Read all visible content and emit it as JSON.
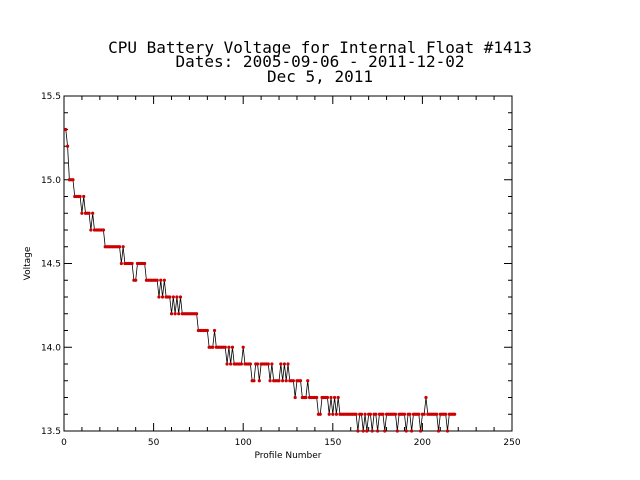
{
  "chart_data": {
    "type": "line",
    "title": "CPU Battery Voltage for Internal Float #1413",
    "subtitle": "Dates:  2005-09-06 -  2011-12-02",
    "date_line": "Dec  5, 2011",
    "xlabel": "Profile Number",
    "ylabel": "Voltage",
    "xlim": [
      0,
      250
    ],
    "ylim": [
      13.5,
      15.5
    ],
    "x_ticks": [
      0,
      50,
      100,
      150,
      200,
      250
    ],
    "x_tick_labels": [
      "0",
      "50",
      "100",
      "150",
      "200",
      "250"
    ],
    "y_ticks": [
      13.5,
      14.0,
      14.5,
      15.0,
      15.5
    ],
    "y_tick_labels": [
      "13.5",
      "14.0",
      "14.5",
      "15.0",
      "15.5"
    ],
    "grid": false,
    "line_color": "#000000",
    "marker_color": "#cc0000",
    "series": [
      {
        "values": [
          15.3,
          15.2,
          15.0,
          15.0,
          15.0,
          14.9,
          14.9,
          14.9,
          14.9,
          14.8,
          14.9,
          14.8,
          14.8,
          14.8,
          14.7,
          14.8,
          14.7,
          14.7,
          14.7,
          14.7,
          14.7,
          14.7,
          14.6,
          14.6,
          14.6,
          14.6,
          14.6,
          14.6,
          14.6,
          14.6,
          14.6,
          14.5,
          14.6,
          14.5,
          14.5,
          14.5,
          14.5,
          14.5,
          14.4,
          14.4,
          14.5,
          14.5,
          14.5,
          14.5,
          14.5,
          14.4,
          14.4,
          14.4,
          14.4,
          14.4,
          14.4,
          14.4,
          14.3,
          14.4,
          14.3,
          14.4,
          14.3,
          14.3,
          14.3,
          14.2,
          14.3,
          14.2,
          14.3,
          14.2,
          14.3,
          14.2,
          14.2,
          14.2,
          14.2,
          14.2,
          14.2,
          14.2,
          14.2,
          14.2,
          14.1,
          14.1,
          14.1,
          14.1,
          14.1,
          14.1,
          14.0,
          14.0,
          14.0,
          14.1,
          14.0,
          14.0,
          14.0,
          14.0,
          14.0,
          14.0,
          13.9,
          14.0,
          13.9,
          14.0,
          13.9,
          13.9,
          13.9,
          13.9,
          13.9,
          14.0,
          13.9,
          13.9,
          13.9,
          13.9,
          13.8,
          13.8,
          13.9,
          13.9,
          13.8,
          13.9,
          13.9,
          13.9,
          13.9,
          13.9,
          13.8,
          13.9,
          13.8,
          13.8,
          13.8,
          13.8,
          13.9,
          13.8,
          13.9,
          13.8,
          13.9,
          13.8,
          13.8,
          13.8,
          13.7,
          13.8,
          13.8,
          13.8,
          13.7,
          13.7,
          13.7,
          13.8,
          13.7,
          13.7,
          13.7,
          13.7,
          13.7,
          13.6,
          13.6,
          13.7,
          13.7,
          13.7,
          13.7,
          13.6,
          13.7,
          13.6,
          13.7,
          13.6,
          13.7,
          13.6,
          13.6,
          13.6,
          13.6,
          13.6,
          13.6,
          13.6,
          13.6,
          13.6,
          13.6,
          13.5,
          13.6,
          13.6,
          13.5,
          13.6,
          13.5,
          13.6,
          13.6,
          13.5,
          13.6,
          13.6,
          13.5,
          13.6,
          13.6,
          13.6,
          13.5,
          13.6,
          13.6,
          13.6,
          13.6,
          13.6,
          13.6,
          13.5,
          13.6,
          13.6,
          13.6,
          13.6,
          13.5,
          13.6,
          13.6,
          13.5,
          13.6,
          13.6,
          13.6,
          13.6,
          13.5,
          13.6,
          13.6,
          13.7,
          13.6,
          13.6,
          13.6,
          13.6,
          13.6,
          13.6,
          13.5,
          13.6,
          13.6,
          13.6,
          13.6,
          13.5,
          13.6,
          13.6,
          13.6,
          13.6
        ]
      }
    ]
  }
}
